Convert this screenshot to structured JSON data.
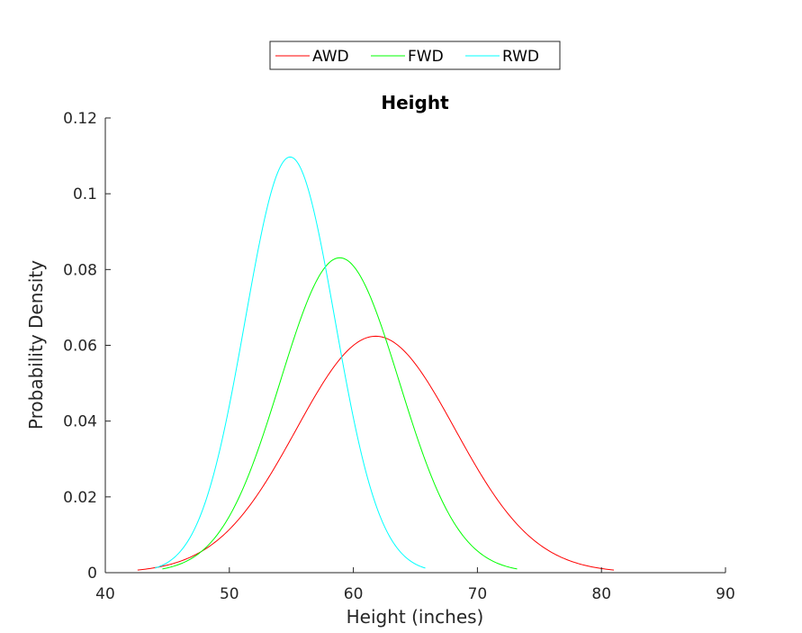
{
  "chart_data": {
    "type": "line",
    "title": "Height",
    "xlabel": "Height (inches)",
    "ylabel": "Probability Density",
    "xlim": [
      40,
      90
    ],
    "ylim": [
      0,
      0.12
    ],
    "xticks": [
      40,
      50,
      60,
      70,
      80,
      90
    ],
    "yticks": [
      0,
      0.02,
      0.04,
      0.06,
      0.08,
      0.1,
      0.12
    ],
    "xtick_labels": [
      "40",
      "50",
      "60",
      "70",
      "80",
      "90"
    ],
    "ytick_labels": [
      "0",
      "0.02",
      "0.04",
      "0.06",
      "0.08",
      "0.1",
      "0.12"
    ],
    "grid": false,
    "legend_position": "top-center",
    "series": [
      {
        "name": "AWD",
        "color": "#ff0000",
        "mean": 61.8,
        "std": 6.4,
        "x_range": [
          42.6,
          81.0
        ],
        "peak": 0.0624
      },
      {
        "name": "FWD",
        "color": "#00ff00",
        "mean": 58.9,
        "std": 4.8,
        "x_range": [
          44.6,
          73.2
        ],
        "peak": 0.0831
      },
      {
        "name": "RWD",
        "color": "#00ffff",
        "mean": 54.9,
        "std": 3.63,
        "x_range": [
          44.0,
          65.8
        ],
        "peak": 0.1097
      }
    ]
  }
}
